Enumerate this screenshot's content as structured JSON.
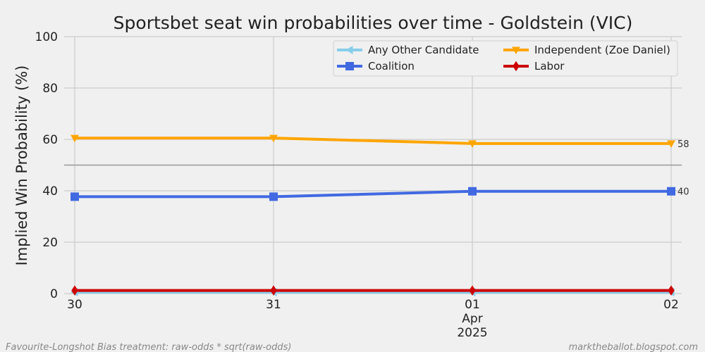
{
  "chart_data": {
    "type": "line",
    "title": "Sportsbet seat win probabilities over time - Goldstein (VIC)",
    "ylabel": "Implied Win Probability (%)",
    "xlabel": "",
    "ylim": [
      0,
      100
    ],
    "yticks": [
      "0",
      "20",
      "40",
      "60",
      "80",
      "100"
    ],
    "x_tick_labels": [
      {
        "lines": [
          "30"
        ]
      },
      {
        "lines": [
          "31"
        ]
      },
      {
        "lines": [
          "01",
          "Apr",
          "2025"
        ]
      },
      {
        "lines": [
          "02"
        ]
      }
    ],
    "reference_line": 50,
    "grid": true,
    "legend_placement": "top-right",
    "series": [
      {
        "name": "Any Other Candidate",
        "color": "#87ceeb",
        "marker": "triangle-left",
        "values": [
          0.5,
          0.5,
          0.5,
          0.5
        ]
      },
      {
        "name": "Independent (Zoe Daniel)",
        "color": "#ffa500",
        "marker": "triangle-down",
        "values": [
          60.5,
          60.5,
          58.4,
          58.4
        ],
        "end_label": "58"
      },
      {
        "name": "Coalition",
        "color": "#4169e1",
        "marker": "square",
        "values": [
          37.7,
          37.7,
          39.8,
          39.8
        ],
        "end_label": "40"
      },
      {
        "name": "Labor",
        "color": "#cc0000",
        "marker": "diamond",
        "values": [
          1.2,
          1.2,
          1.2,
          1.2
        ]
      }
    ]
  },
  "footer": {
    "left": "Favourite-Longshot Bias treatment: raw-odds * sqrt(raw-odds)",
    "right": "marktheballot.blogspot.com"
  }
}
